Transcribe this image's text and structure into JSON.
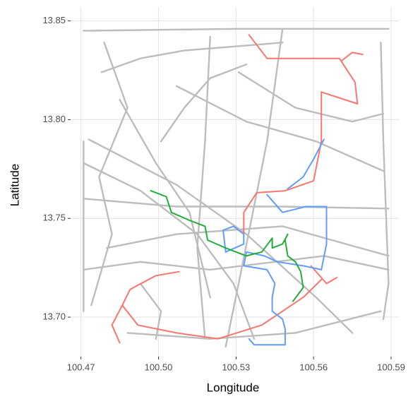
{
  "chart_data": {
    "type": "line",
    "x_label": "Longitude",
    "y_label": "Latitude",
    "xlim": [
      100.466,
      100.593
    ],
    "ylim": [
      13.68,
      13.857
    ],
    "xticks": [
      100.47,
      {
        "value": 100.5,
        "label": "100.50"
      },
      100.53,
      100.56,
      100.59
    ],
    "yticks": [
      {
        "value": 13.7,
        "label": "13.70"
      },
      13.75,
      {
        "value": 13.8,
        "label": "13.80"
      },
      13.85
    ],
    "grid": true,
    "series": [
      {
        "color": "#bdbdbd",
        "x": [
          100.471,
          100.531,
          100.564,
          100.589
        ],
        "values": [
          13.845,
          13.846,
          13.846,
          13.846
        ]
      },
      {
        "color": "#bdbdbd",
        "x": [
          100.471,
          100.471,
          100.471
        ],
        "values": [
          13.789,
          13.753,
          13.703
        ]
      },
      {
        "color": "#bdbdbd",
        "x": [
          100.473,
          100.507,
          100.534,
          100.561,
          100.575
        ],
        "values": [
          13.79,
          13.767,
          13.742,
          13.71,
          13.692
        ]
      },
      {
        "color": "#bdbdbd",
        "x": [
          100.478,
          100.493,
          100.51,
          100.529,
          100.548
        ],
        "values": [
          13.824,
          13.831,
          13.835,
          13.837,
          13.839
        ]
      },
      {
        "color": "#bdbdbd",
        "x": [
          100.501,
          100.51,
          100.52,
          100.534
        ],
        "values": [
          13.789,
          13.806,
          13.821,
          13.828
        ]
      },
      {
        "color": "#bdbdbd",
        "x": [
          100.471,
          100.493,
          100.515,
          100.529,
          100.537
        ],
        "values": [
          13.778,
          13.764,
          13.742,
          13.717,
          13.689
        ]
      },
      {
        "color": "#bdbdbd",
        "x": [
          100.471,
          100.507,
          100.548,
          100.589
        ],
        "values": [
          13.76,
          13.756,
          13.756,
          13.755
        ]
      },
      {
        "color": "#bdbdbd",
        "x": [
          100.52,
          100.518,
          100.515,
          100.518
        ],
        "values": [
          13.842,
          13.789,
          13.735,
          13.689
        ]
      },
      {
        "color": "#bdbdbd",
        "x": [
          100.548,
          100.542,
          100.531,
          100.526
        ],
        "values": [
          13.846,
          13.789,
          13.717,
          13.685
        ]
      },
      {
        "color": "#bdbdbd",
        "x": [
          100.586,
          100.587,
          100.589,
          100.587
        ],
        "values": [
          13.839,
          13.789,
          13.717,
          13.699
        ]
      },
      {
        "color": "#bdbdbd",
        "x": [
          100.488,
          100.52,
          100.553,
          100.586
        ],
        "values": [
          13.692,
          13.689,
          13.692,
          13.703
        ]
      },
      {
        "color": "#bdbdbd",
        "x": [
          100.507,
          100.534,
          100.561,
          100.587
        ],
        "values": [
          13.817,
          13.799,
          13.789,
          13.774
        ]
      },
      {
        "color": "#bdbdbd",
        "x": [
          100.48,
          100.507,
          100.548,
          100.589
        ],
        "values": [
          13.735,
          13.742,
          13.746,
          13.731
        ]
      },
      {
        "color": "#bdbdbd",
        "x": [
          100.493,
          100.501,
          100.499
        ],
        "values": [
          13.717,
          13.703,
          13.689
        ]
      },
      {
        "color": "#bdbdbd",
        "x": [
          100.485,
          100.499,
          100.512,
          100.52
        ],
        "values": [
          13.81,
          13.778,
          13.753,
          13.71
        ]
      },
      {
        "color": "#bdbdbd",
        "x": [
          100.471,
          100.493,
          100.52,
          100.564,
          100.589
        ],
        "values": [
          13.724,
          13.728,
          13.724,
          13.731,
          13.724
        ]
      },
      {
        "color": "#bdbdbd",
        "x": [
          100.531,
          100.553,
          100.575,
          100.587
        ],
        "values": [
          13.824,
          13.806,
          13.799,
          13.803
        ]
      },
      {
        "color": "#bdbdbd",
        "x": [
          100.479,
          100.488,
          100.477,
          100.482,
          100.474
        ],
        "values": [
          13.839,
          13.806,
          13.771,
          13.742,
          13.706
        ]
      },
      {
        "color": "#f8766d",
        "x": [
          100.535,
          100.542,
          100.559,
          100.57,
          100.572,
          100.576,
          100.577,
          100.563,
          100.563,
          100.56,
          100.549,
          100.538,
          100.533,
          100.533,
          null,
          100.571,
          100.575,
          100.579,
          null,
          100.559,
          100.565,
          100.569,
          null,
          100.563,
          100.556,
          100.548,
          100.54,
          100.523,
          100.507,
          100.492,
          100.486,
          100.489,
          100.499,
          100.508,
          null,
          100.486,
          100.482,
          100.485
        ],
        "values": [
          13.843,
          13.831,
          13.831,
          13.831,
          13.827,
          13.819,
          13.808,
          13.814,
          13.789,
          13.769,
          13.764,
          13.763,
          13.753,
          13.742,
          null,
          13.83,
          13.834,
          13.833,
          null,
          13.726,
          13.717,
          13.72,
          null,
          13.719,
          13.71,
          13.703,
          13.696,
          13.689,
          13.692,
          13.696,
          13.706,
          13.714,
          13.721,
          13.723,
          null,
          13.706,
          13.696,
          13.687
        ]
      },
      {
        "color": "#619cff",
        "x": [
          100.564,
          100.56,
          100.556,
          100.55,
          null,
          100.542,
          100.548,
          100.557,
          100.565,
          100.565,
          100.563,
          100.556,
          100.546,
          100.541,
          100.534,
          100.533,
          100.542,
          100.545,
          100.544,
          100.544,
          100.548,
          100.549,
          100.549,
          100.537,
          100.535,
          null,
          100.525,
          100.529,
          100.533,
          100.533,
          100.526,
          100.525
        ],
        "values": [
          13.79,
          13.78,
          13.771,
          13.765,
          null,
          13.762,
          13.753,
          13.756,
          13.756,
          13.737,
          13.724,
          13.726,
          13.728,
          13.731,
          13.733,
          13.726,
          13.724,
          13.717,
          13.71,
          13.703,
          13.699,
          13.694,
          13.686,
          13.686,
          13.689,
          null,
          13.744,
          13.746,
          13.742,
          13.737,
          13.733,
          13.744
        ]
      },
      {
        "color": "#1fae3a",
        "x": [
          100.497,
          100.503,
          100.505,
          100.512,
          100.518,
          100.519,
          100.526,
          100.534,
          100.54,
          100.544,
          100.544,
          100.548,
          100.55,
          null,
          100.549,
          100.55,
          100.553,
          100.555,
          100.556,
          100.552
        ],
        "values": [
          13.764,
          13.761,
          13.753,
          13.749,
          13.746,
          13.739,
          13.735,
          13.731,
          13.733,
          13.74,
          13.735,
          13.737,
          13.742,
          null,
          13.739,
          13.731,
          13.728,
          13.723,
          13.715,
          13.708
        ]
      }
    ]
  }
}
